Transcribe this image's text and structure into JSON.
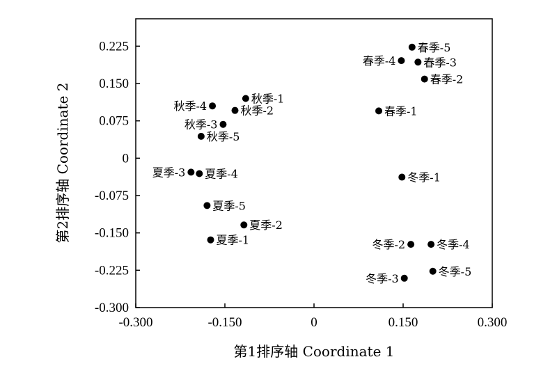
{
  "chart_data": {
    "type": "scatter",
    "title": "",
    "xlabel": "第1排序轴 Coordinate 1",
    "ylabel": "第2排序轴 Coordinate 2",
    "xlim": [
      -0.3,
      0.3
    ],
    "ylim": [
      -0.3,
      0.28
    ],
    "xticks": [
      -0.3,
      -0.15,
      0,
      0.15,
      0.3
    ],
    "xtick_labels": [
      "-0.300",
      "-0.150",
      "0",
      "0.150",
      "0.300"
    ],
    "yticks": [
      -0.3,
      -0.225,
      -0.15,
      -0.075,
      0,
      0.075,
      0.15,
      0.225
    ],
    "ytick_labels": [
      "-0.300",
      "-0.225",
      "-0.150",
      "-0.075",
      "0",
      "0.075",
      "0.150",
      "0.225"
    ],
    "grid": false,
    "legend": "none",
    "marker_color": "#000000",
    "points": [
      {
        "label": "春季-5",
        "x": 0.165,
        "y": 0.223,
        "pos": "right"
      },
      {
        "label": "春季-4",
        "x": 0.147,
        "y": 0.196,
        "pos": "left"
      },
      {
        "label": "春季-3",
        "x": 0.175,
        "y": 0.193,
        "pos": "right"
      },
      {
        "label": "春季-2",
        "x": 0.186,
        "y": 0.159,
        "pos": "right"
      },
      {
        "label": "春季-1",
        "x": 0.109,
        "y": 0.095,
        "pos": "right"
      },
      {
        "label": "秋季-1",
        "x": -0.115,
        "y": 0.12,
        "pos": "right"
      },
      {
        "label": "秋季-4",
        "x": -0.171,
        "y": 0.105,
        "pos": "left"
      },
      {
        "label": "秋季-2",
        "x": -0.133,
        "y": 0.096,
        "pos": "right"
      },
      {
        "label": "秋季-3",
        "x": -0.153,
        "y": 0.068,
        "pos": "left"
      },
      {
        "label": "秋季-5",
        "x": -0.19,
        "y": 0.044,
        "pos": "right"
      },
      {
        "label": "夏季-3",
        "x": -0.207,
        "y": -0.028,
        "pos": "left"
      },
      {
        "label": "夏季-4",
        "x": -0.193,
        "y": -0.031,
        "pos": "right"
      },
      {
        "label": "冬季-1",
        "x": 0.148,
        "y": -0.038,
        "pos": "right"
      },
      {
        "label": "夏季-5",
        "x": -0.18,
        "y": -0.095,
        "pos": "right"
      },
      {
        "label": "夏季-2",
        "x": -0.118,
        "y": -0.134,
        "pos": "right"
      },
      {
        "label": "夏季-1",
        "x": -0.174,
        "y": -0.164,
        "pos": "right"
      },
      {
        "label": "冬季-2",
        "x": 0.163,
        "y": -0.173,
        "pos": "left"
      },
      {
        "label": "冬季-4",
        "x": 0.197,
        "y": -0.173,
        "pos": "right"
      },
      {
        "label": "冬季-5",
        "x": 0.2,
        "y": -0.227,
        "pos": "right"
      },
      {
        "label": "冬季-3",
        "x": 0.152,
        "y": -0.241,
        "pos": "left"
      }
    ]
  }
}
